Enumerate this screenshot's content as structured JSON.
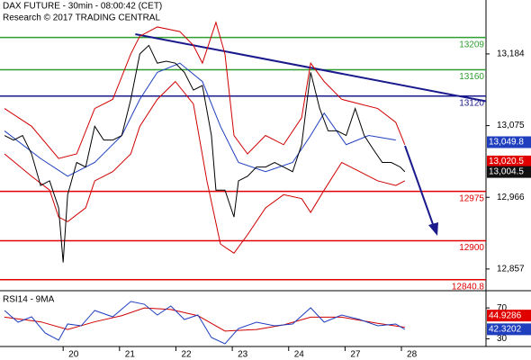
{
  "chart_data": [
    {
      "type": "line",
      "title": "DAX FUTURE - 30min - 08:00:42 (CET)",
      "subtitle": "Research © 2017 TRADING CENTRAL",
      "xlim": [
        -1.12,
        7.5
      ],
      "ylim": [
        12824,
        13266
      ],
      "xticks": [
        {
          "value": 0,
          "label": "20"
        },
        {
          "value": 1,
          "label": "21"
        },
        {
          "value": 2,
          "label": "22"
        },
        {
          "value": 3,
          "label": "23"
        },
        {
          "value": 4,
          "label": "24"
        },
        {
          "value": 5,
          "label": "27"
        },
        {
          "value": 6,
          "label": "28"
        }
      ],
      "yticks": [
        {
          "value": 13184,
          "label": "13,184"
        },
        {
          "value": 13075,
          "label": "13,075"
        },
        {
          "value": 12966,
          "label": "12,966"
        },
        {
          "value": 12857,
          "label": "12,857"
        }
      ],
      "series": [
        {
          "color": "#d00000",
          "x": [
            -1.04,
            -0.56,
            -0.08,
            0.24,
            0.56,
            0.88,
            1.2,
            1.36,
            1.67,
            2.07,
            2.31,
            2.47,
            2.71,
            2.87,
            3.03,
            3.27,
            3.59,
            3.91,
            4.23,
            4.39,
            4.63,
            4.94,
            5.26,
            5.58,
            5.9,
            6.06
          ],
          "values": [
            13101,
            13074,
            13025,
            13032,
            13101,
            13115,
            13184,
            13211,
            13225,
            13218,
            13197,
            13170,
            13232,
            13184,
            13060,
            13032,
            13060,
            13046,
            13087,
            13170,
            13142,
            13115,
            13108,
            13101,
            13080,
            13046
          ]
        },
        {
          "color": "#d00000",
          "x": [
            -1.04,
            -0.56,
            -0.24,
            -0.08,
            0.08,
            0.4,
            0.56,
            0.88,
            1.2,
            1.36,
            1.67,
            1.99,
            2.31,
            2.55,
            2.79,
            3.03,
            3.27,
            3.59,
            3.91,
            4.23,
            4.39,
            4.63,
            4.94,
            5.26,
            5.58,
            5.9,
            6.06
          ],
          "values": [
            13032,
            12998,
            12977,
            12936,
            12929,
            12950,
            12991,
            13005,
            13032,
            13074,
            13115,
            13142,
            13108,
            12991,
            12895,
            12881,
            12909,
            12950,
            12970,
            12964,
            12943,
            12977,
            13019,
            13005,
            12991,
            12984,
            12991
          ]
        },
        {
          "color": "#1f3fbf",
          "x": [
            -1.04,
            -0.4,
            0.08,
            0.56,
            1.04,
            1.36,
            1.67,
            2.07,
            2.47,
            2.79,
            3.11,
            3.59,
            4.07,
            4.39,
            4.63,
            5.02,
            5.42,
            5.9
          ],
          "values": [
            13067,
            13025,
            12998,
            13019,
            13060,
            13115,
            13156,
            13170,
            13142,
            13074,
            13019,
            13005,
            13019,
            13060,
            13094,
            13046,
            13060,
            13053
          ]
        },
        {
          "color": "#000000",
          "x": [
            -1.04,
            -0.88,
            -0.72,
            -0.56,
            -0.4,
            -0.24,
            -0.08,
            0,
            0.08,
            0.24,
            0.4,
            0.56,
            0.72,
            0.88,
            1.04,
            1.2,
            1.36,
            1.52,
            1.67,
            1.83,
            1.99,
            2.15,
            2.31,
            2.47,
            2.63,
            2.71,
            2.87,
            3.03,
            3.11,
            3.27,
            3.43,
            3.59,
            3.75,
            3.91,
            4.07,
            4.23,
            4.39,
            4.55,
            4.7,
            4.86,
            5.02,
            5.18,
            5.34,
            5.5,
            5.66,
            5.82,
            5.98,
            6.06
          ],
          "values": [
            13060,
            13053,
            13060,
            13032,
            12984,
            12991,
            12950,
            12867,
            12970,
            13019,
            13012,
            13074,
            13053,
            13053,
            13060,
            13115,
            13184,
            13197,
            13170,
            13173,
            13170,
            13156,
            13129,
            13136,
            13060,
            12977,
            12977,
            12936,
            12991,
            12998,
            13012,
            13012,
            13019,
            13012,
            13005,
            13046,
            13156,
            13101,
            13067,
            13067,
            13060,
            13101,
            13060,
            13039,
            13019,
            13019,
            13012,
            13005
          ]
        }
      ],
      "levels": [
        {
          "value": 13209,
          "color": "#2e9e2e"
        },
        {
          "value": 13160,
          "color": "#2e9e2e"
        },
        {
          "value": 13120,
          "color": "#1a1a8c"
        },
        {
          "value": 12975,
          "color": "#e00000"
        },
        {
          "value": 12900,
          "color": "#e00000"
        },
        {
          "value": 12840.8,
          "color": "#e00000"
        }
      ],
      "trendline": {
        "x": [
          1.28,
          7.5
        ],
        "values": [
          13214,
          13112
        ],
        "color": "#1a1a8c"
      },
      "tags": [
        {
          "value": 13049.8,
          "label": "13,049.8",
          "color": "#1f3fbf"
        },
        {
          "value": 13020.5,
          "label": "13,020.5",
          "color": "#e00000"
        },
        {
          "value": 13004.5,
          "label": "13,004.5",
          "color": "#111111"
        }
      ]
    },
    {
      "type": "line",
      "title": "RSI14 - 9MA",
      "xlim": [
        -1.12,
        7.5
      ],
      "ylim": [
        20,
        90
      ],
      "yticks": [
        30,
        70
      ],
      "series": [
        {
          "color": "#d00000",
          "x": [
            -1.04,
            -0.4,
            0.08,
            0.56,
            1.04,
            1.44,
            1.91,
            2.39,
            2.87,
            3.43,
            3.91,
            4.39,
            4.94,
            5.58,
            6.06
          ],
          "values": [
            58,
            52,
            42,
            52,
            60,
            70,
            68,
            60,
            40,
            42,
            48,
            58,
            58,
            50,
            44.9
          ]
        },
        {
          "color": "#1f3fbf",
          "x": [
            -1.04,
            -0.8,
            -0.56,
            -0.32,
            -0.08,
            0.08,
            0.32,
            0.56,
            0.88,
            1.2,
            1.44,
            1.67,
            1.91,
            2.15,
            2.39,
            2.63,
            2.87,
            3.11,
            3.43,
            3.75,
            4.07,
            4.39,
            4.63,
            4.94,
            5.26,
            5.58,
            5.9,
            6.06
          ],
          "values": [
            66.7,
            51.5,
            58.5,
            37.5,
            28.2,
            49.2,
            46.8,
            66.7,
            58.5,
            78.3,
            74.8,
            60.8,
            72.5,
            55,
            60.8,
            31.7,
            23.5,
            43.3,
            51.5,
            46.8,
            49.2,
            70.2,
            51.5,
            60.8,
            55,
            46.8,
            49.2,
            42.3
          ]
        }
      ],
      "tags": [
        {
          "value": 44.9286,
          "label": "44.9286",
          "color": "#e00000"
        },
        {
          "value": 42.3202,
          "label": "42.3202",
          "color": "#1f3fbf"
        }
      ]
    }
  ]
}
